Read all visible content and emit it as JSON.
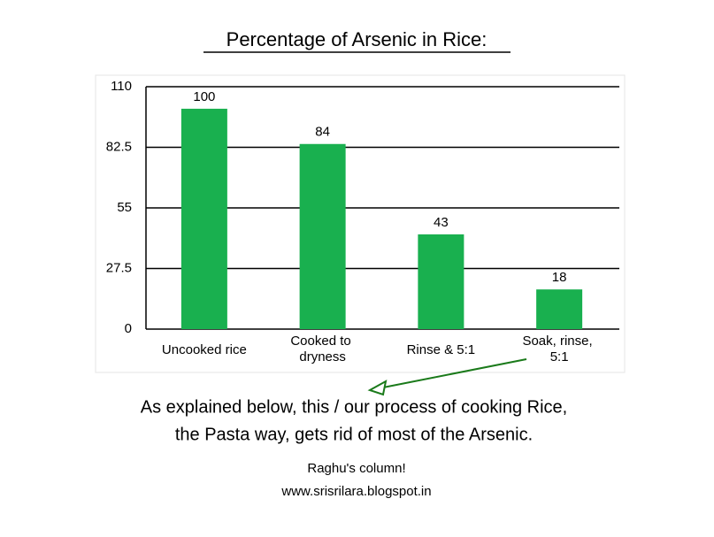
{
  "chart_data": {
    "type": "bar",
    "title": "Percentage of Arsenic in Rice:",
    "categories": [
      "Uncooked rice",
      "Cooked to dryness",
      "Rinse & 5:1",
      "Soak, rinse, 5:1"
    ],
    "values": [
      100,
      84,
      43,
      18
    ],
    "color": "#19b04f",
    "ylim": [
      0,
      110
    ],
    "yticks": [
      0,
      27.5,
      55,
      82.5,
      110
    ],
    "grid": true,
    "annotations": [
      "As explained below, this / our process of cooking Rice,",
      "the Pasta way, gets rid of most of the Arsenic."
    ],
    "footer": [
      "Raghu's column!",
      "www.srisrilara.blogspot.in"
    ]
  }
}
